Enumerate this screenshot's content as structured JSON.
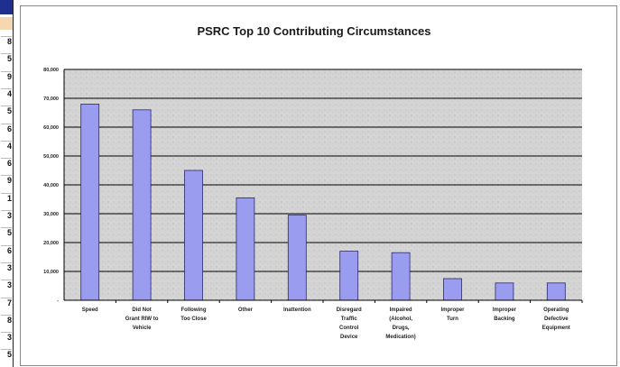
{
  "spreadsheet_strip": {
    "row_digits": [
      "8",
      "5",
      "9",
      "4",
      "5",
      "6",
      "4",
      "6",
      "9",
      "1",
      "3",
      "5",
      "6",
      "3",
      "3",
      "7",
      "8",
      "3",
      "5"
    ]
  },
  "chart_data": {
    "type": "bar",
    "title": "PSRC Top 10 Contributing Circumstances",
    "categories": [
      [
        "Speed"
      ],
      [
        "Did Not",
        "Grant RIW to",
        "Vehicle"
      ],
      [
        "Following",
        "Too Close"
      ],
      [
        "Other"
      ],
      [
        "Inattention"
      ],
      [
        "Disregard",
        "Traffic",
        "Control",
        "Device"
      ],
      [
        "Impaired",
        "(Alcohol,",
        "Drugs,",
        "Medication)"
      ],
      [
        "Improper",
        "Turn"
      ],
      [
        "Improper",
        "Backing"
      ],
      [
        "Operating",
        "Defective",
        "Equipment"
      ]
    ],
    "values": [
      68000,
      66000,
      45000,
      35500,
      29500,
      17000,
      16500,
      7500,
      6000,
      6000
    ],
    "ylim": [
      0,
      80000
    ],
    "yticks": [
      0,
      10000,
      20000,
      30000,
      40000,
      50000,
      60000,
      70000,
      80000
    ],
    "ytick_labels": [
      "-",
      "10,000",
      "20,000",
      "30,000",
      "40,000",
      "50,000",
      "60,000",
      "70,000",
      "80,000"
    ],
    "xlabel": "",
    "ylabel": "",
    "grid": true,
    "colors": {
      "bar_fill": "#9a9cf0",
      "bar_stroke": "#2a2a6a",
      "plot_bg": "#d4d4d4",
      "gridline": "#000000"
    }
  }
}
